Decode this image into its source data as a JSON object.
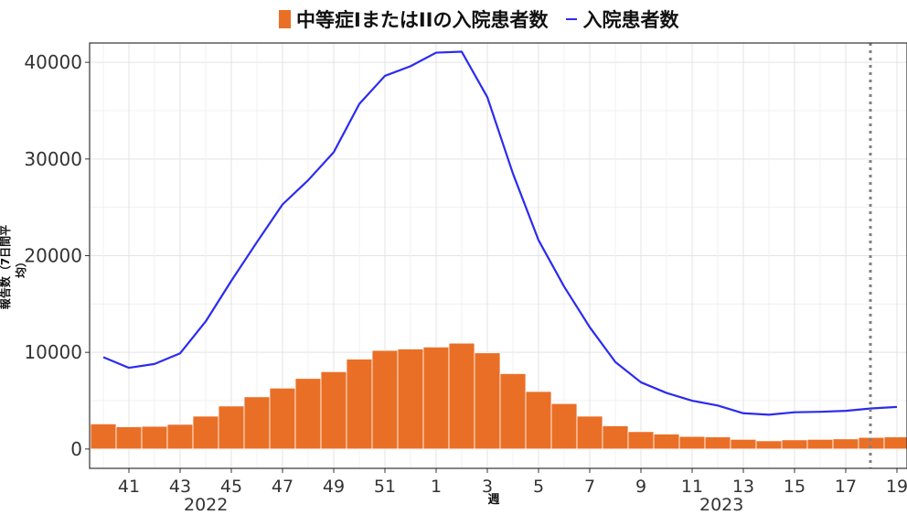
{
  "chart_data": {
    "type": "bar",
    "legend_position": "top",
    "grid": true,
    "xlabel": "週",
    "ylabel": "報告数（7日間平均）",
    "ylim": [
      -2000,
      42000
    ],
    "yticks": [
      0,
      10000,
      20000,
      30000,
      40000
    ],
    "categories": [
      "40",
      "41",
      "42",
      "43",
      "44",
      "45",
      "46",
      "47",
      "48",
      "49",
      "50",
      "51",
      "52",
      "1",
      "2",
      "3",
      "4",
      "5",
      "6",
      "7",
      "8",
      "9",
      "10",
      "11",
      "12",
      "13",
      "14",
      "15",
      "16",
      "17",
      "18",
      "19"
    ],
    "tick_labels": [
      "41",
      "43",
      "45",
      "47",
      "49",
      "51",
      "1",
      "3",
      "5",
      "7",
      "9",
      "11",
      "13",
      "15",
      "17",
      "19"
    ],
    "year_labels": [
      "2022",
      "2023"
    ],
    "series": [
      {
        "name": "中等症IまたはIIの入院患者数",
        "kind": "bar",
        "color": "#ea6f26",
        "values": [
          2600,
          2300,
          2350,
          2550,
          3400,
          4450,
          5400,
          6300,
          7300,
          8000,
          9300,
          10200,
          10350,
          10550,
          10950,
          9950,
          7800,
          5950,
          4700,
          3400,
          2400,
          1800,
          1550,
          1300,
          1250,
          1000,
          850,
          950,
          1000,
          1050,
          1200,
          1250
        ]
      },
      {
        "name": "入院患者数",
        "kind": "line",
        "color": "#2b2bf0",
        "values": [
          9500,
          8400,
          8800,
          9900,
          13200,
          17400,
          21400,
          25300,
          27800,
          30700,
          35700,
          38600,
          39600,
          41000,
          41100,
          36400,
          28500,
          21600,
          16800,
          12600,
          9000,
          6900,
          5800,
          5000,
          4500,
          3700,
          3550,
          3800,
          3850,
          3950,
          4200,
          4350
        ]
      }
    ],
    "reference_line": {
      "week": "18",
      "style": "dotted",
      "color": "#808080"
    }
  }
}
